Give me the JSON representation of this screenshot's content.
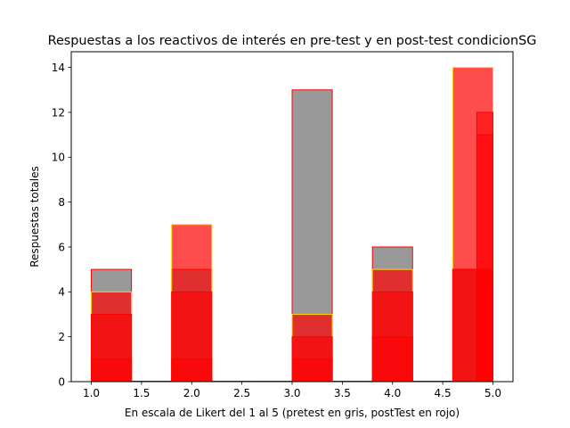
{
  "chart_data": {
    "type": "bar",
    "title": "Respuestas a los reactivos de interés en pre-test y en post-test condicionSG",
    "xlabel": "En escala de Likert del 1 al 5 (pretest en gris, postTest en rojo)",
    "ylabel": "Respuestas totales",
    "xlim": [
      0.8,
      5.2
    ],
    "ylim": [
      0,
      14.7
    ],
    "xticks": [
      "1.0",
      "1.5",
      "2.0",
      "2.5",
      "3.0",
      "3.5",
      "4.0",
      "4.5",
      "5.0"
    ],
    "yticks": [
      "0",
      "2",
      "4",
      "6",
      "8",
      "10",
      "12",
      "14"
    ],
    "grid": false,
    "colors": {
      "pretest_fill": "#999999",
      "posttest_fill": "#ff0000",
      "posttest_alpha": 0.7,
      "edge_red": "#ff0000",
      "edge_yellow": "#ffd700"
    },
    "series": [
      {
        "bins": [
          [
            1.0,
            1.4
          ],
          [
            1.4,
            1.8
          ],
          [
            1.8,
            2.2
          ],
          [
            2.2,
            2.6
          ],
          [
            2.6,
            3.0
          ],
          [
            3.0,
            3.4
          ],
          [
            3.4,
            3.8
          ],
          [
            3.8,
            4.2
          ],
          [
            4.2,
            4.6
          ],
          [
            4.6,
            5.0
          ]
        ],
        "values": [
          5,
          0,
          5,
          0,
          0,
          13,
          0,
          6,
          0,
          5
        ]
      },
      {
        "bins": [
          [
            1.0,
            1.4
          ],
          [
            1.4,
            1.8
          ],
          [
            1.8,
            2.2
          ],
          [
            2.2,
            2.6
          ],
          [
            2.6,
            3.0
          ],
          [
            3.0,
            3.4
          ],
          [
            3.4,
            3.8
          ],
          [
            3.8,
            4.2
          ],
          [
            4.2,
            4.6
          ],
          [
            4.6,
            5.0
          ]
        ],
        "values": [
          4,
          0,
          7,
          0,
          0,
          3,
          0,
          5,
          0,
          14
        ]
      }
    ],
    "overlay_bars": [
      {
        "x": [
          1.0,
          1.4
        ],
        "value": 3
      },
      {
        "x": [
          1.0,
          1.4
        ],
        "value": 1
      },
      {
        "x": [
          1.8,
          2.2
        ],
        "value": 4
      },
      {
        "x": [
          1.8,
          2.2
        ],
        "value": 1
      },
      {
        "x": [
          3.0,
          3.4
        ],
        "value": 2
      },
      {
        "x": [
          3.0,
          3.4
        ],
        "value": 1
      },
      {
        "x": [
          3.8,
          4.2
        ],
        "value": 4
      },
      {
        "x": [
          3.8,
          4.2
        ],
        "value": 2
      },
      {
        "x": [
          4.6,
          5.0
        ],
        "value": 5
      },
      {
        "x": [
          4.84,
          5.0
        ],
        "value": 12
      },
      {
        "x": [
          4.84,
          5.0
        ],
        "value": 11
      },
      {
        "x": [
          4.84,
          5.0
        ],
        "value": 4
      }
    ]
  }
}
